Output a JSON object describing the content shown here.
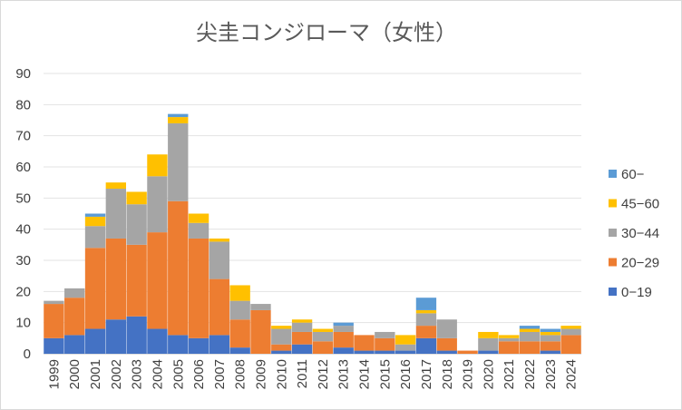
{
  "chart_data": {
    "type": "bar",
    "stacked": true,
    "title": "尖圭コンジローマ（女性）",
    "xlabel": "",
    "ylabel": "",
    "ylim": [
      0,
      90
    ],
    "yticks": [
      0,
      10,
      20,
      30,
      40,
      50,
      60,
      70,
      80,
      90
    ],
    "grid": true,
    "legend_position": "right",
    "categories": [
      "1999",
      "2000",
      "2001",
      "2002",
      "2003",
      "2004",
      "2005",
      "2006",
      "2007",
      "2008",
      "2009",
      "2010",
      "2011",
      "2012",
      "2013",
      "2014",
      "2015",
      "2016",
      "2017",
      "2018",
      "2019",
      "2020",
      "2021",
      "2022",
      "2023",
      "2024"
    ],
    "series": [
      {
        "name": "0−19",
        "color": "#4472c4",
        "values": [
          5,
          6,
          8,
          11,
          12,
          8,
          6,
          5,
          6,
          2,
          0,
          1,
          3,
          0,
          2,
          1,
          1,
          1,
          5,
          1,
          0,
          1,
          0,
          0,
          1,
          0
        ]
      },
      {
        "name": "20−29",
        "color": "#ed7d31",
        "values": [
          11,
          12,
          26,
          26,
          23,
          31,
          43,
          32,
          18,
          9,
          14,
          2,
          4,
          4,
          5,
          5,
          4,
          0,
          4,
          4,
          1,
          0,
          4,
          4,
          3,
          6
        ]
      },
      {
        "name": "30−44",
        "color": "#a5a5a5",
        "values": [
          1,
          3,
          7,
          16,
          13,
          18,
          25,
          5,
          12,
          6,
          2,
          5,
          3,
          3,
          2,
          0,
          2,
          2,
          4,
          6,
          0,
          4,
          1,
          3,
          2,
          2
        ]
      },
      {
        "name": "45−60",
        "color": "#ffc000",
        "values": [
          0,
          0,
          3,
          2,
          4,
          7,
          2,
          3,
          1,
          5,
          0,
          1,
          1,
          1,
          0,
          0,
          0,
          3,
          1,
          0,
          0,
          2,
          1,
          1,
          1,
          1
        ]
      },
      {
        "name": "60−",
        "color": "#5b9bd5",
        "values": [
          0,
          0,
          1,
          0,
          0,
          0,
          1,
          0,
          0,
          0,
          0,
          0,
          0,
          0,
          1,
          0,
          0,
          0,
          4,
          0,
          0,
          0,
          0,
          1,
          1,
          0
        ]
      }
    ]
  }
}
